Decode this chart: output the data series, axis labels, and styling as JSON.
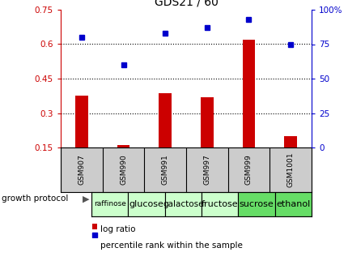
{
  "title": "GDS21 / 60",
  "samples": [
    "GSM907",
    "GSM990",
    "GSM991",
    "GSM997",
    "GSM999",
    "GSM1001"
  ],
  "growth_labels": [
    "raffinose",
    "glucose",
    "galactose",
    "fructose",
    "sucrose",
    "ethanol"
  ],
  "log_ratio": [
    0.375,
    0.162,
    0.385,
    0.37,
    0.62,
    0.2
  ],
  "log_ratio_base": 0.15,
  "percentile_rank": [
    80,
    60,
    83,
    87,
    93,
    75
  ],
  "left_ylim": [
    0.15,
    0.75
  ],
  "right_ylim": [
    0,
    100
  ],
  "left_yticks": [
    0.15,
    0.3,
    0.45,
    0.6,
    0.75
  ],
  "right_yticks": [
    0,
    25,
    50,
    75,
    100
  ],
  "bar_color": "#CC0000",
  "dot_color": "#0000CC",
  "bg_color": "#ffffff",
  "grid_color": "#000000",
  "sample_bg": "#cccccc",
  "growth_colors": [
    "#ccffcc",
    "#ccffcc",
    "#ccffcc",
    "#ccffcc",
    "#66dd66",
    "#66dd66"
  ],
  "legend_bar_color": "#CC0000",
  "legend_dot_color": "#0000CC",
  "left_axis_color": "#CC0000",
  "right_axis_color": "#0000CC",
  "grid_yticks": [
    0.3,
    0.45,
    0.6
  ]
}
